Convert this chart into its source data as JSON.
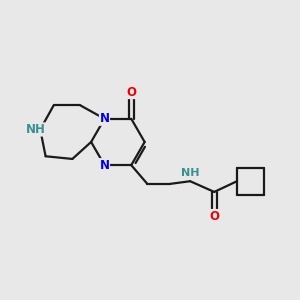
{
  "bg_color": "#e8e8e8",
  "bond_color": "#1a1a1a",
  "N_color": "#0000ee",
  "NH_color": "#3a9090",
  "O_color": "#ee0000",
  "line_width": 1.6,
  "font_size": 8.5,
  "xlim": [
    0,
    11
  ],
  "ylim": [
    2.5,
    9.5
  ]
}
